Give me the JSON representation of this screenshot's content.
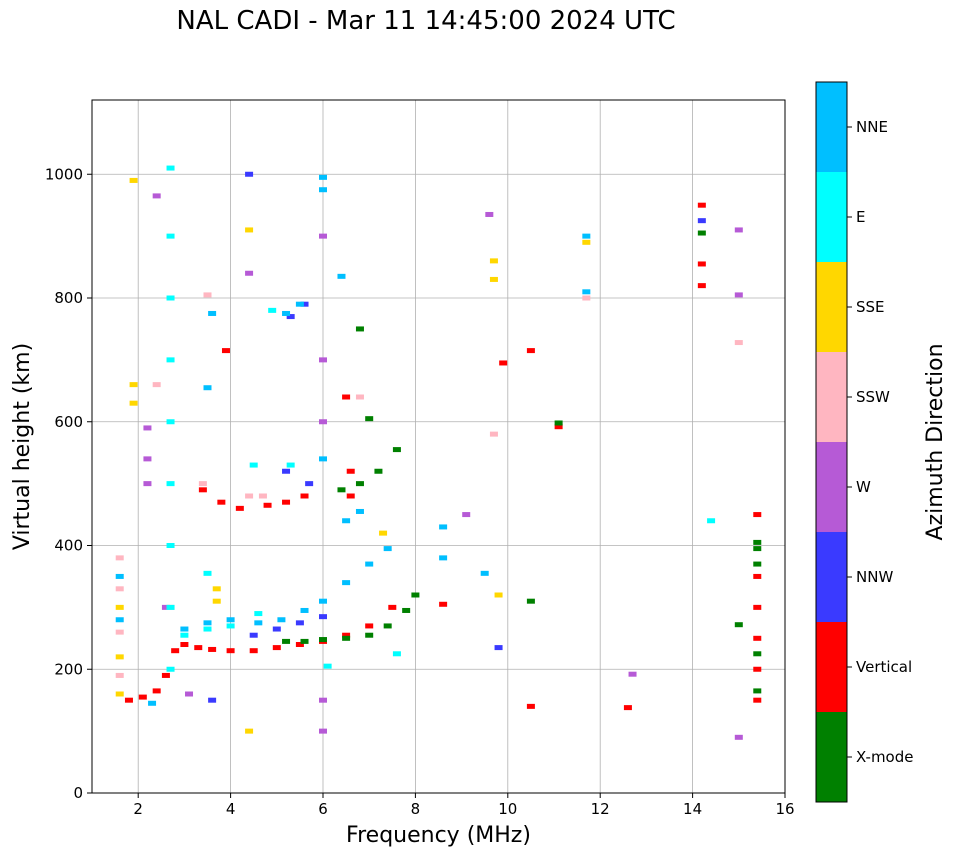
{
  "chart_data": {
    "type": "scatter",
    "title": "NAL CADI - Mar 11 14:45:00 2024 UTC",
    "xlabel": "Frequency (MHz)",
    "ylabel": "Virtual height (km)",
    "xlim": [
      1,
      16
    ],
    "ylim": [
      0,
      1120
    ],
    "xticks": [
      2,
      4,
      6,
      8,
      10,
      12,
      14,
      16
    ],
    "yticks": [
      0,
      200,
      400,
      600,
      800,
      1000
    ],
    "grid": true,
    "colorbar": {
      "label": "Azimuth Direction",
      "categories": [
        {
          "name": "X-mode",
          "color": "#008000"
        },
        {
          "name": "Vertical",
          "color": "#ff0000"
        },
        {
          "name": "NNW",
          "color": "#3a3aff"
        },
        {
          "name": "W",
          "color": "#b65ad6"
        },
        {
          "name": "SSW",
          "color": "#ffb6c1"
        },
        {
          "name": "SSE",
          "color": "#ffd700"
        },
        {
          "name": "E",
          "color": "#00ffff"
        },
        {
          "name": "NNE",
          "color": "#00bfff"
        }
      ]
    },
    "series": [
      {
        "name": "Vertical",
        "points": [
          [
            1.8,
            150
          ],
          [
            2.1,
            155
          ],
          [
            2.4,
            165
          ],
          [
            2.6,
            190
          ],
          [
            2.8,
            230
          ],
          [
            3.0,
            240
          ],
          [
            3.3,
            235
          ],
          [
            3.6,
            232
          ],
          [
            4.0,
            230
          ],
          [
            4.5,
            230
          ],
          [
            5.0,
            235
          ],
          [
            5.5,
            240
          ],
          [
            6.0,
            245
          ],
          [
            6.5,
            255
          ],
          [
            7.0,
            270
          ],
          [
            7.5,
            300
          ],
          [
            3.4,
            490
          ],
          [
            3.8,
            470
          ],
          [
            4.2,
            460
          ],
          [
            4.8,
            465
          ],
          [
            5.2,
            470
          ],
          [
            5.6,
            480
          ],
          [
            3.9,
            715
          ],
          [
            6.5,
            640
          ],
          [
            6.6,
            520
          ],
          [
            6.6,
            480
          ],
          [
            8.6,
            305
          ],
          [
            9.9,
            695
          ],
          [
            10.5,
            715
          ],
          [
            11.1,
            592
          ],
          [
            10.5,
            140
          ],
          [
            12.6,
            138
          ],
          [
            14.2,
            950
          ],
          [
            14.2,
            855
          ],
          [
            14.2,
            820
          ],
          [
            15.4,
            150
          ],
          [
            15.4,
            200
          ],
          [
            15.4,
            250
          ],
          [
            15.4,
            300
          ],
          [
            15.4,
            350
          ],
          [
            15.4,
            450
          ]
        ]
      },
      {
        "name": "X-mode",
        "points": [
          [
            5.2,
            245
          ],
          [
            5.6,
            245
          ],
          [
            6.0,
            248
          ],
          [
            6.5,
            250
          ],
          [
            7.0,
            255
          ],
          [
            7.4,
            270
          ],
          [
            7.8,
            295
          ],
          [
            8.0,
            320
          ],
          [
            6.4,
            490
          ],
          [
            6.8,
            500
          ],
          [
            7.2,
            520
          ],
          [
            7.6,
            555
          ],
          [
            6.8,
            750
          ],
          [
            7.0,
            605
          ],
          [
            10.5,
            310
          ],
          [
            11.1,
            598
          ],
          [
            14.2,
            905
          ],
          [
            15.0,
            272
          ],
          [
            15.4,
            405
          ],
          [
            15.4,
            395
          ],
          [
            15.4,
            370
          ],
          [
            15.4,
            225
          ],
          [
            15.4,
            165
          ]
        ]
      },
      {
        "name": "NNW",
        "points": [
          [
            4.5,
            255
          ],
          [
            5.0,
            265
          ],
          [
            5.5,
            275
          ],
          [
            6.0,
            285
          ],
          [
            5.3,
            770
          ],
          [
            5.6,
            790
          ],
          [
            5.2,
            520
          ],
          [
            5.7,
            500
          ],
          [
            9.8,
            235
          ],
          [
            14.2,
            925
          ],
          [
            4.4,
            1000
          ],
          [
            3.6,
            150
          ]
        ]
      },
      {
        "name": "W",
        "points": [
          [
            2.2,
            590
          ],
          [
            2.2,
            540
          ],
          [
            2.2,
            500
          ],
          [
            2.6,
            300
          ],
          [
            3.1,
            160
          ],
          [
            4.4,
            840
          ],
          [
            6.0,
            900
          ],
          [
            6.0,
            700
          ],
          [
            6.0,
            600
          ],
          [
            6.0,
            150
          ],
          [
            6.0,
            100
          ],
          [
            9.1,
            450
          ],
          [
            9.6,
            935
          ],
          [
            15.0,
            910
          ],
          [
            15.0,
            805
          ],
          [
            15.0,
            90
          ],
          [
            12.7,
            192
          ],
          [
            2.4,
            965
          ]
        ]
      },
      {
        "name": "SSW",
        "points": [
          [
            1.6,
            380
          ],
          [
            1.6,
            330
          ],
          [
            1.6,
            260
          ],
          [
            1.6,
            190
          ],
          [
            2.4,
            660
          ],
          [
            2.7,
            300
          ],
          [
            3.4,
            500
          ],
          [
            4.4,
            480
          ],
          [
            4.7,
            480
          ],
          [
            6.8,
            640
          ],
          [
            9.7,
            580
          ],
          [
            11.7,
            800
          ],
          [
            15.0,
            728
          ],
          [
            3.5,
            805
          ]
        ]
      },
      {
        "name": "SSE",
        "points": [
          [
            1.6,
            300
          ],
          [
            1.6,
            220
          ],
          [
            1.6,
            160
          ],
          [
            1.9,
            990
          ],
          [
            1.9,
            660
          ],
          [
            1.9,
            630
          ],
          [
            3.7,
            330
          ],
          [
            3.7,
            310
          ],
          [
            4.4,
            910
          ],
          [
            4.4,
            100
          ],
          [
            7.3,
            420
          ],
          [
            9.7,
            860
          ],
          [
            9.7,
            830
          ],
          [
            11.7,
            890
          ],
          [
            9.8,
            320
          ]
        ]
      },
      {
        "name": "E",
        "points": [
          [
            2.7,
            1010
          ],
          [
            2.7,
            900
          ],
          [
            2.7,
            800
          ],
          [
            2.7,
            700
          ],
          [
            2.7,
            600
          ],
          [
            2.7,
            500
          ],
          [
            2.7,
            400
          ],
          [
            2.7,
            300
          ],
          [
            2.7,
            200
          ],
          [
            3.0,
            255
          ],
          [
            3.5,
            265
          ],
          [
            4.0,
            270
          ],
          [
            4.6,
            290
          ],
          [
            4.9,
            780
          ],
          [
            5.3,
            530
          ],
          [
            6.1,
            205
          ],
          [
            7.6,
            225
          ],
          [
            14.4,
            440
          ],
          [
            3.5,
            355
          ],
          [
            4.5,
            530
          ]
        ]
      },
      {
        "name": "NNE",
        "points": [
          [
            1.6,
            350
          ],
          [
            1.6,
            280
          ],
          [
            2.3,
            145
          ],
          [
            3.0,
            265
          ],
          [
            3.5,
            275
          ],
          [
            4.0,
            280
          ],
          [
            4.6,
            275
          ],
          [
            5.1,
            280
          ],
          [
            5.6,
            295
          ],
          [
            6.0,
            310
          ],
          [
            6.5,
            340
          ],
          [
            7.0,
            370
          ],
          [
            7.4,
            395
          ],
          [
            5.2,
            775
          ],
          [
            5.5,
            790
          ],
          [
            6.0,
            995
          ],
          [
            6.0,
            975
          ],
          [
            6.4,
            835
          ],
          [
            6.8,
            455
          ],
          [
            6.5,
            440
          ],
          [
            8.6,
            430
          ],
          [
            8.6,
            380
          ],
          [
            9.5,
            355
          ],
          [
            11.7,
            900
          ],
          [
            11.7,
            810
          ],
          [
            3.6,
            775
          ],
          [
            3.5,
            655
          ],
          [
            6.0,
            540
          ]
        ]
      }
    ]
  }
}
